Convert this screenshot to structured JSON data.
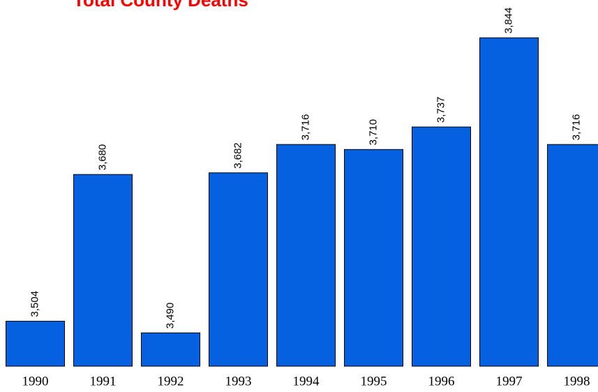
{
  "chart_data": {
    "type": "bar",
    "title": "Total County Deaths",
    "categories": [
      "1990",
      "1991",
      "1992",
      "1993",
      "1994",
      "1995",
      "1996",
      "1997",
      "1998"
    ],
    "values": [
      3504,
      3680,
      3490,
      3682,
      3716,
      3710,
      3737,
      3844,
      3716
    ],
    "value_labels": [
      "3,504",
      "3,680",
      "3,490",
      "3,682",
      "3,716",
      "3,710",
      "3,737",
      "3,844",
      "3,716"
    ],
    "color": "#0561e0",
    "ylim": [
      3450,
      3850
    ]
  }
}
